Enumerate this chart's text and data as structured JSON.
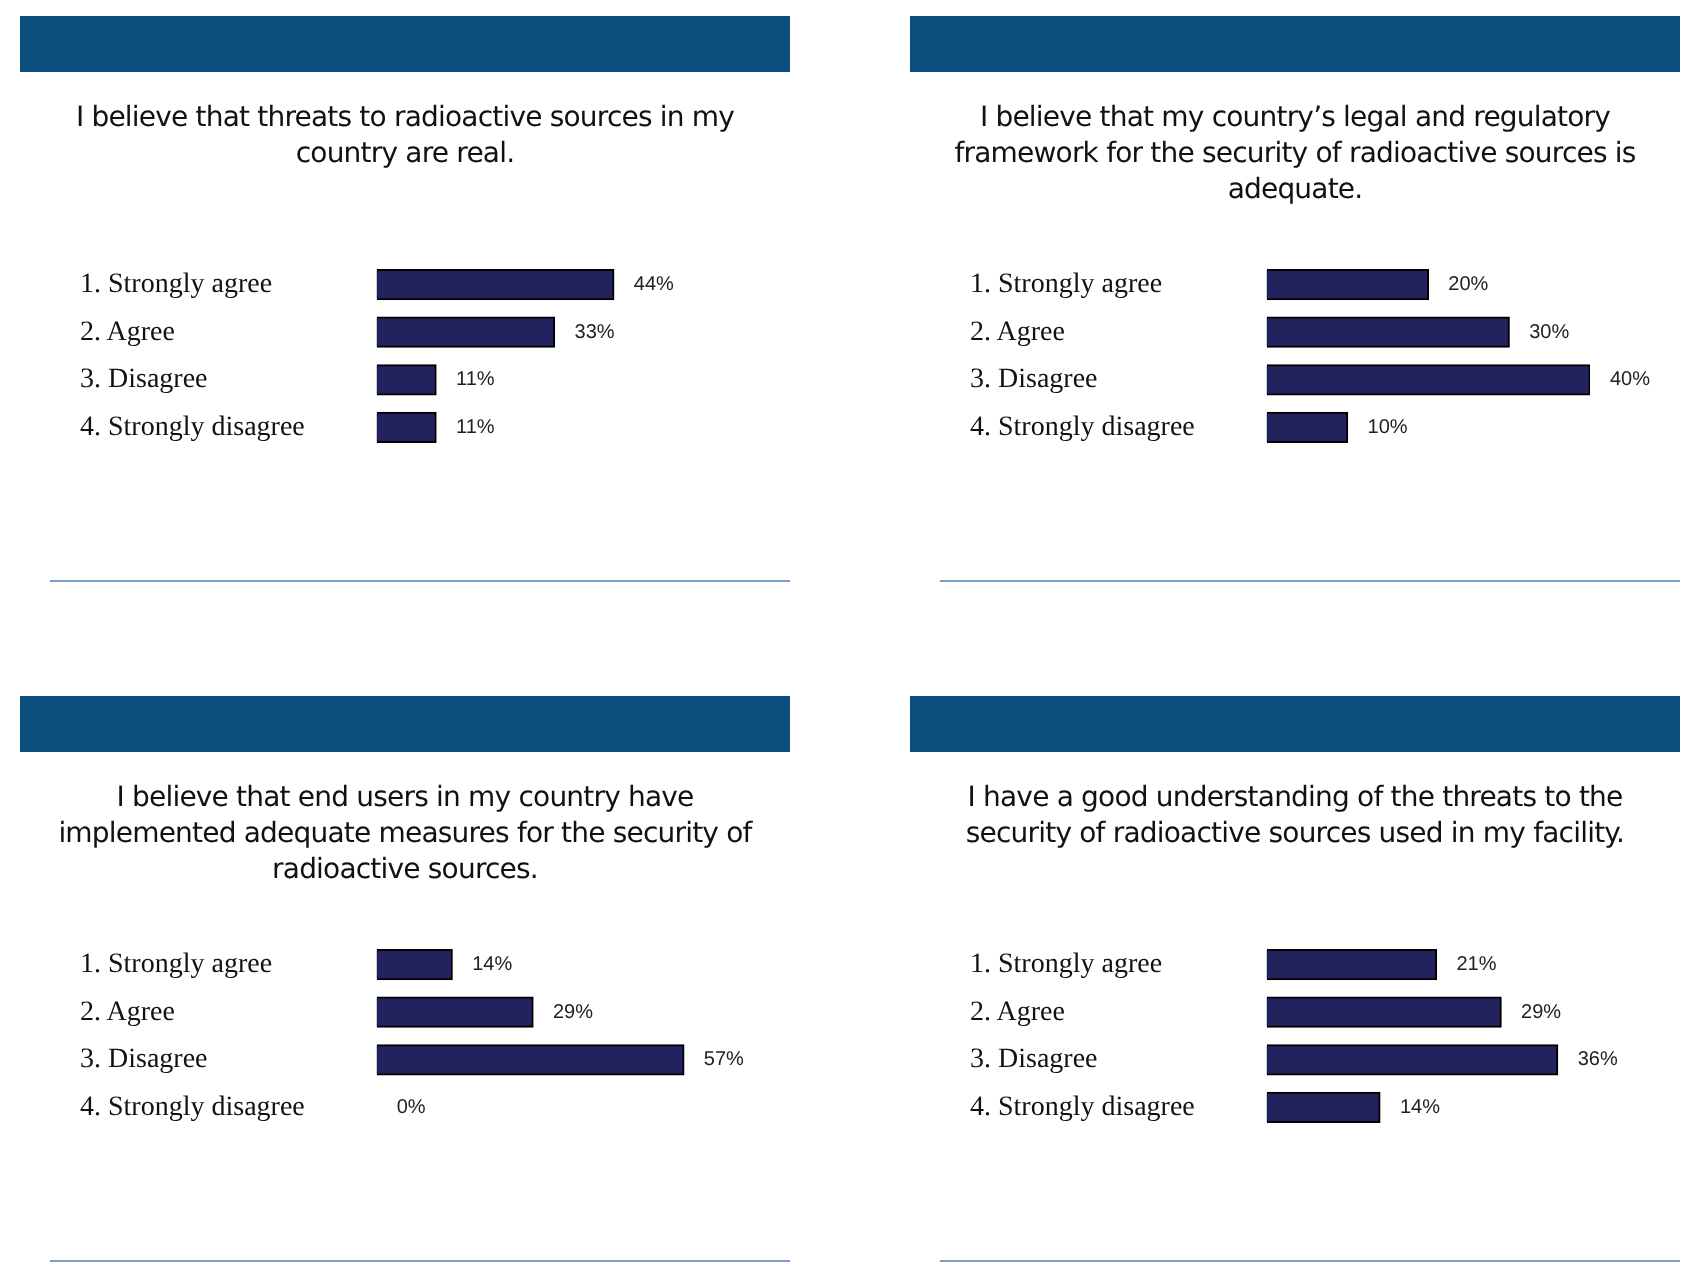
{
  "chart_data": [
    {
      "type": "bar",
      "orientation": "horizontal",
      "title": "I believe that threats to radioactive sources in my country are real.",
      "categories": [
        "1. Strongly agree",
        "2. Agree",
        "3. Disagree",
        "4. Strongly disagree"
      ],
      "values": [
        44,
        33,
        11,
        11
      ],
      "value_labels": [
        "44%",
        "33%",
        "11%",
        "11%"
      ],
      "color": "#22225e"
    },
    {
      "type": "bar",
      "orientation": "horizontal",
      "title": "I believe that my country’s legal and regulatory framework for the security of radioactive sources is adequate.",
      "categories": [
        "1. Strongly agree",
        "2. Agree",
        "3. Disagree",
        "4. Strongly disagree"
      ],
      "values": [
        20,
        30,
        40,
        10
      ],
      "value_labels": [
        "20%",
        "30%",
        "40%",
        "10%"
      ],
      "color": "#22225e"
    },
    {
      "type": "bar",
      "orientation": "horizontal",
      "title": "I believe that end users in my country have implemented adequate measures for the security of radioactive sources.",
      "categories": [
        "1. Strongly agree",
        "2. Agree",
        "3. Disagree",
        "4. Strongly disagree"
      ],
      "values": [
        14,
        29,
        57,
        0
      ],
      "value_labels": [
        "14%",
        "29%",
        "57%",
        "0%"
      ],
      "color": "#22225e"
    },
    {
      "type": "bar",
      "orientation": "horizontal",
      "title": "I have a good understanding of the threats to the security of radioactive sources used in my facility.",
      "categories": [
        "1. Strongly agree",
        "2. Agree",
        "3. Disagree",
        "4. Strongly disagree"
      ],
      "values": [
        21,
        29,
        36,
        14
      ],
      "value_labels": [
        "21%",
        "29%",
        "36%",
        "14%"
      ],
      "color": "#22225e"
    }
  ]
}
